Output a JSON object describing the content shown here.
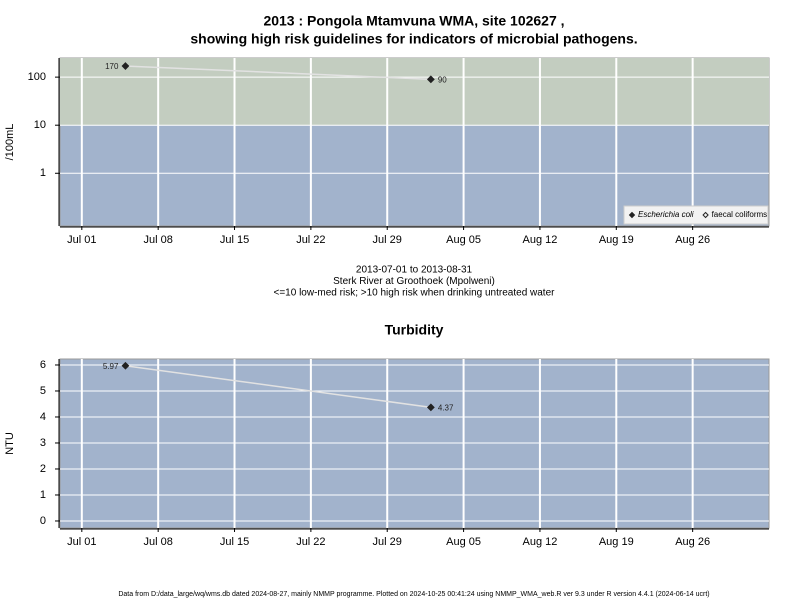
{
  "chart_data": [
    {
      "type": "line",
      "title": [
        "2013 : Pongola Mtamvuna WMA, site 102627 ,",
        "showing high risk guidelines for indicators of microbial pathogens."
      ],
      "y_label": "/100mL",
      "notes": [
        "2013-07-01 to 2013-08-31",
        "Sterk River at Groothoek (Mpolweni)",
        "<=10 low-med risk; >10 high risk when drinking untreated water"
      ],
      "x": [
        "Jul 05",
        "Aug 02"
      ],
      "xlim": [
        "Jun 29",
        "Sep 02"
      ],
      "xticks": [
        "Jul 01",
        "Jul 08",
        "Jul 15",
        "Jul 22",
        "Jul 29",
        "Aug 05",
        "Aug 12",
        "Aug 19",
        "Aug 26"
      ],
      "log_y": true,
      "ylim": [
        0.08,
        250
      ],
      "yticks": [
        1,
        10,
        100
      ],
      "grid": true,
      "background": "#a2b3cc",
      "high_risk": {
        "above": 10,
        "color": "#c3cdc0"
      },
      "line_color": "#e2e2e2",
      "legend": "bottom-right",
      "series": [
        {
          "name": "Escherichia coli",
          "color": "#222222",
          "filled": true,
          "values": [
            170,
            90
          ]
        },
        {
          "name": "faecal coliforms",
          "color": "#222222",
          "filled": false,
          "values": [
            null,
            null
          ]
        }
      ]
    },
    {
      "type": "line",
      "title": "Turbidity",
      "y_label": "NTU",
      "x": [
        "Jul 05",
        "Aug 02"
      ],
      "xlim": [
        "Jun 29",
        "Sep 02"
      ],
      "xticks": [
        "Jul 01",
        "Jul 08",
        "Jul 15",
        "Jul 22",
        "Jul 29",
        "Aug 05",
        "Aug 12",
        "Aug 19",
        "Aug 26"
      ],
      "log_y": false,
      "ylim": [
        -0.27,
        6.23
      ],
      "yticks": [
        0,
        1,
        2,
        3,
        4,
        5,
        6
      ],
      "grid": true,
      "background": "#a2b3cc",
      "line_color": "#e2e2e2",
      "series": [
        {
          "name": "Turbidity",
          "color": "#222222",
          "filled": true,
          "values": [
            5.97,
            4.37
          ]
        }
      ]
    }
  ],
  "footer": "Data from D:/data_large/wq/wms.db dated 2024-08-27, mainly NMMP programme. Plotted on 2024-10-25 00:41:24 using NMMP_WMA_web.R ver 9.3 under R version 4.4.1 (2024-06-14 ucrt)"
}
